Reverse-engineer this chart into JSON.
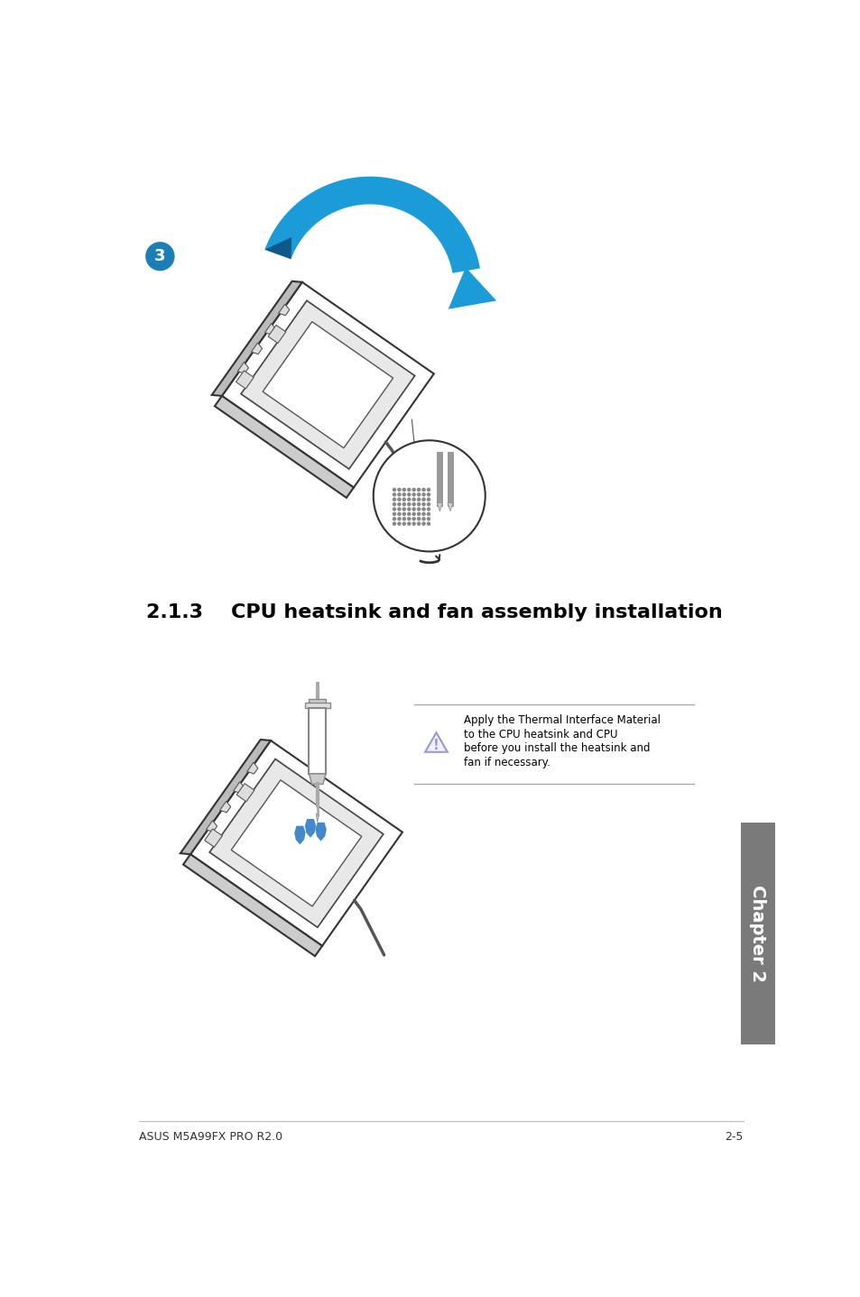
{
  "bg_color": "#ffffff",
  "title_section": "2.1.3",
  "title_rest": "CPU heatsink and fan assembly installation",
  "footer_left": "ASUS M5A99FX PRO R2.0",
  "footer_right": "2-5",
  "chapter_label": "Chapter 2",
  "chapter_bg": "#7a7a7a",
  "step_number": "3",
  "step_circle_color": "#1b7eb5",
  "arrow_color": "#1b9cd8",
  "warning_text_line1": "Apply the Thermal Interface Material",
  "warning_text_line2": "to the CPU heatsink and CPU",
  "warning_text_line3": "before you install the heatsink and",
  "warning_text_line4": "fan if necessary.",
  "blue_drop_color": "#4488cc",
  "section_title_fontsize": 16,
  "body_fontsize": 9,
  "footer_fontsize": 9
}
